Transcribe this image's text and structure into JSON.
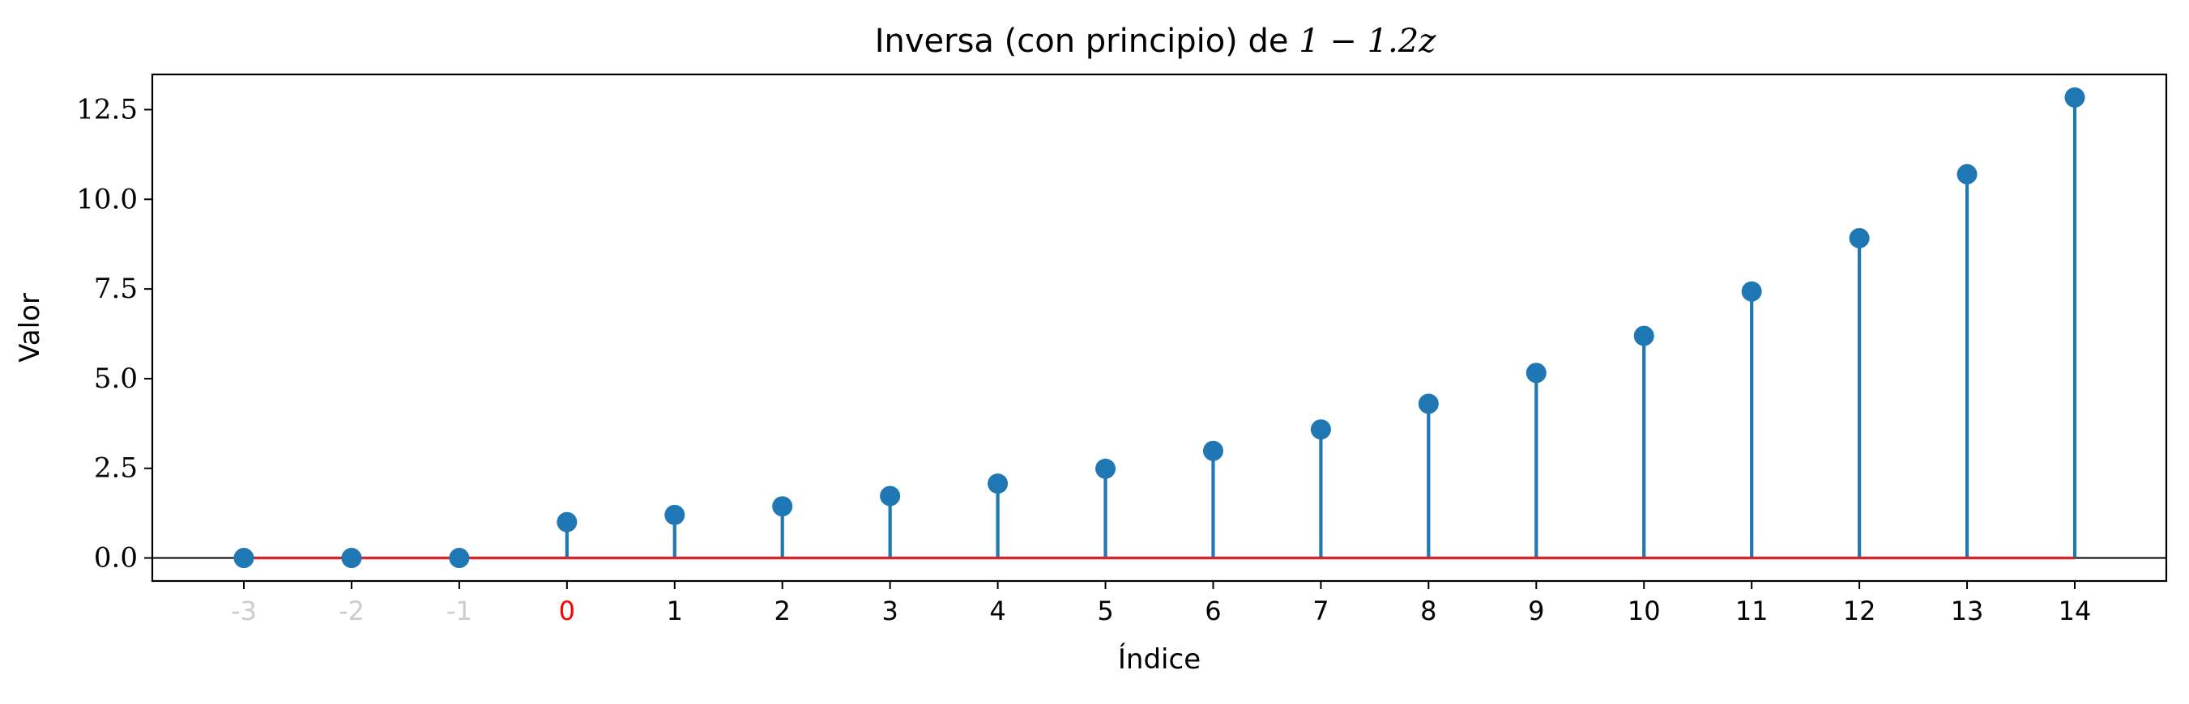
{
  "chart_data": {
    "type": "stem",
    "title": {
      "text": "Inversa (con principio) de ",
      "math": "1 − 1.2z"
    },
    "xlabel": "Índice",
    "ylabel": "Valor",
    "x": [
      -3,
      -2,
      -1,
      0,
      1,
      2,
      3,
      4,
      5,
      6,
      7,
      8,
      9,
      10,
      11,
      12,
      13,
      14
    ],
    "values": [
      0,
      0,
      0,
      1,
      1.2,
      1.44,
      1.728,
      2.0736,
      2.48832,
      2.985984,
      3.5831808,
      4.29981696,
      5.159780352,
      6.191736422,
      7.430083707,
      8.916100448,
      10.69932054,
      12.83918465
    ],
    "xtick_labels": [
      "-3",
      "-2",
      "-1",
      "0",
      "1",
      "2",
      "3",
      "4",
      "5",
      "6",
      "7",
      "8",
      "9",
      "10",
      "11",
      "12",
      "13",
      "14"
    ],
    "xtick_colors": [
      "#cccccc",
      "#cccccc",
      "#cccccc",
      "#ff0000",
      "#000000",
      "#000000",
      "#000000",
      "#000000",
      "#000000",
      "#000000",
      "#000000",
      "#000000",
      "#000000",
      "#000000",
      "#000000",
      "#000000",
      "#000000",
      "#000000"
    ],
    "yticks": [
      0,
      2.5,
      5,
      7.5,
      10,
      12.5
    ],
    "ytick_labels": [
      "0.0",
      "2.5",
      "5.0",
      "7.5",
      "10.0",
      "12.5"
    ],
    "xlim": [
      -3.85,
      14.85
    ],
    "ylim": [
      -0.642,
      13.481
    ],
    "grid": false,
    "colors": {
      "stem": "#1f77b4",
      "baseline": "#d62728",
      "zero_line": "#000000"
    }
  }
}
